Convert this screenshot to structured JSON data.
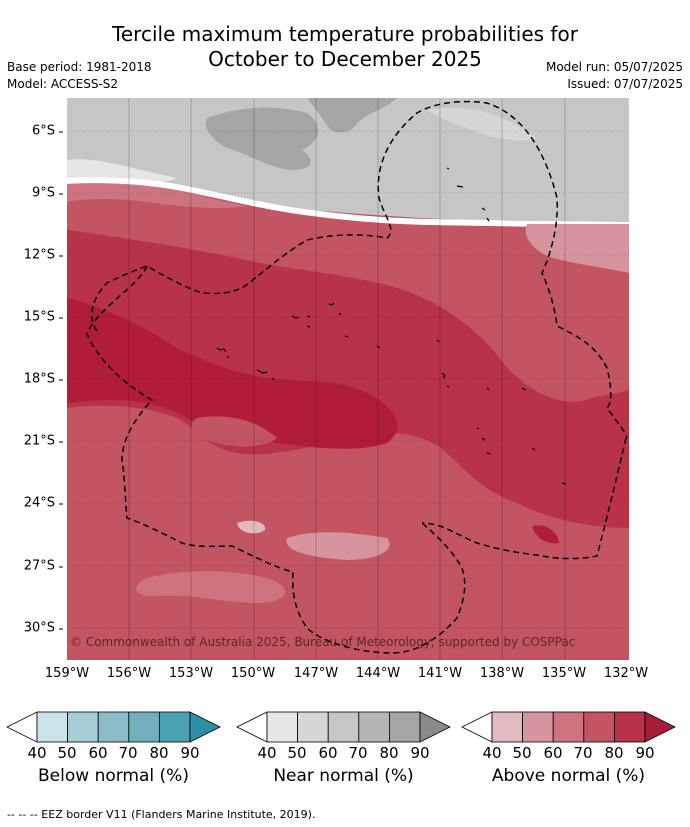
{
  "title_line1": "Tercile maximum temperature probabilities for",
  "title_line2": "October to December 2025",
  "base_period": "Base period: 1981-2018",
  "model": "Model: ACCESS-S2",
  "model_run": "Model run: 05/07/2025",
  "issued": "Issued: 07/07/2025",
  "copyright": "© Commonwealth of Australia 2025, Bureau of Meteorology, supported by COSPPac",
  "lat_labels": [
    "6°S",
    "9°S",
    "12°S",
    "15°S",
    "18°S",
    "21°S",
    "24°S",
    "27°S",
    "30°S"
  ],
  "lon_labels": [
    "159°W",
    "156°W",
    "153°W",
    "150°W",
    "147°W",
    "144°W",
    "141°W",
    "138°W",
    "135°W",
    "132°W"
  ],
  "colorbars": [
    {
      "label": "Below normal (%)",
      "ticks": [
        "40",
        "50",
        "60",
        "70",
        "80",
        "90"
      ],
      "colors": [
        "#ffffff",
        "#c8e3ea",
        "#a6cdd5",
        "#8bbcc7",
        "#71afbd",
        "#4aa2b3",
        "#2c8fa3"
      ]
    },
    {
      "label": "Near normal (%)",
      "ticks": [
        "40",
        "50",
        "60",
        "70",
        "80",
        "90"
      ],
      "colors": [
        "#ffffff",
        "#e6e6e6",
        "#d6d6d6",
        "#c6c6c6",
        "#b5b5b5",
        "#a5a5a5",
        "#8a8a8a"
      ]
    },
    {
      "label": "Above normal (%)",
      "ticks": [
        "40",
        "50",
        "60",
        "70",
        "80",
        "90"
      ],
      "colors": [
        "#ffffff",
        "#e3b9c0",
        "#d6959e",
        "#cd7480",
        "#c35462",
        "#b8324a",
        "#a81c3a"
      ]
    }
  ],
  "footer": "-- -- -- EEZ border V11 (Flanders Marine Institute, 2019)."
}
